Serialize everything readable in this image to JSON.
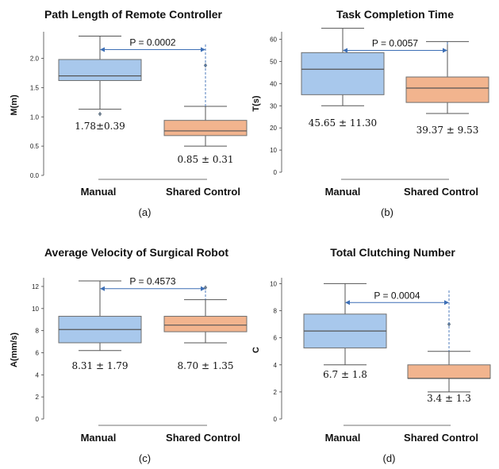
{
  "colors": {
    "manual": "#a8c8ec",
    "shared": "#f2b48e",
    "box_edge": "#6f6f6f",
    "arrow": "#3d6fb6",
    "outlier": "#708090"
  },
  "chart_data": [
    {
      "type": "box",
      "title": "Path Length of Remote Controller",
      "ylabel": "M(m)",
      "ylim": [
        0,
        2.4
      ],
      "yticks": [
        "0.0",
        "0.5",
        "1.0",
        "1.5",
        "2.0"
      ],
      "categories": [
        "Manual",
        "Shared Control"
      ],
      "boxes": [
        {
          "name": "Manual",
          "whisker_low": 1.13,
          "q1": 1.62,
          "median": 1.7,
          "q3": 1.98,
          "whisker_high": 2.38,
          "outliers": [
            1.05
          ],
          "summary": "1.78±0.39"
        },
        {
          "name": "Shared Control",
          "whisker_low": 0.5,
          "q1": 0.68,
          "median": 0.76,
          "q3": 0.94,
          "whisker_high": 1.18,
          "outliers": [
            1.88
          ],
          "summary": "0.85 ± 0.31"
        }
      ],
      "pvalue": "P = 0.0002",
      "pvalue_y": 2.15,
      "caption": "(a)"
    },
    {
      "type": "box",
      "title": "Task Completion Time",
      "ylabel": "T(s)",
      "ylim": [
        0,
        62
      ],
      "yticks": [
        "0",
        "10",
        "20",
        "30",
        "40",
        "50",
        "60"
      ],
      "categories": [
        "Manual",
        "Shared Control"
      ],
      "boxes": [
        {
          "name": "Manual",
          "whisker_low": 30,
          "q1": 35,
          "median": 46.5,
          "q3": 54,
          "whisker_high": 65,
          "outliers": [],
          "summary": "45.65 ± 11.30"
        },
        {
          "name": "Shared Control",
          "whisker_low": 26.5,
          "q1": 31.5,
          "median": 38,
          "q3": 43,
          "whisker_high": 59,
          "outliers": [],
          "summary": "39.37 ± 9.53"
        }
      ],
      "pvalue": "P = 0.0057",
      "pvalue_y": 55,
      "caption": "(b)"
    },
    {
      "type": "box",
      "title": "Average Velocity of Surgical Robot",
      "ylabel": "A(mm/s)",
      "ylim": [
        0,
        12.5
      ],
      "yticks": [
        "0",
        "2",
        "4",
        "6",
        "8",
        "10",
        "12"
      ],
      "categories": [
        "Manual",
        "Shared Control"
      ],
      "boxes": [
        {
          "name": "Manual",
          "whisker_low": 6.2,
          "q1": 6.9,
          "median": 8.1,
          "q3": 9.3,
          "whisker_high": 12.5,
          "outliers": [],
          "summary": "8.31 ± 1.79"
        },
        {
          "name": "Shared Control",
          "whisker_low": 6.9,
          "q1": 7.9,
          "median": 8.5,
          "q3": 9.3,
          "whisker_high": 10.8,
          "outliers": [
            11.9
          ],
          "summary": "8.70 ± 1.35"
        }
      ],
      "pvalue": "P = 0.4573",
      "pvalue_y": 11.8,
      "caption": "(c)"
    },
    {
      "type": "box",
      "title": "Total Clutching Number",
      "ylabel": "C",
      "ylim": [
        0,
        10.2
      ],
      "yticks": [
        "0",
        "2",
        "4",
        "6",
        "8",
        "10"
      ],
      "categories": [
        "Manual",
        "Shared Control"
      ],
      "boxes": [
        {
          "name": "Manual",
          "whisker_low": 4,
          "q1": 5.25,
          "median": 6.5,
          "q3": 7.75,
          "whisker_high": 10,
          "outliers": [],
          "summary": "6.7 ± 1.8"
        },
        {
          "name": "Shared Control",
          "whisker_low": 2,
          "q1": 3,
          "median": 3,
          "q3": 4,
          "whisker_high": 5,
          "outliers": [
            7
          ],
          "summary": "3.4 ± 1.3"
        }
      ],
      "pvalue": "P = 0.0004",
      "pvalue_y": 8.6,
      "caption": "(d)"
    }
  ]
}
